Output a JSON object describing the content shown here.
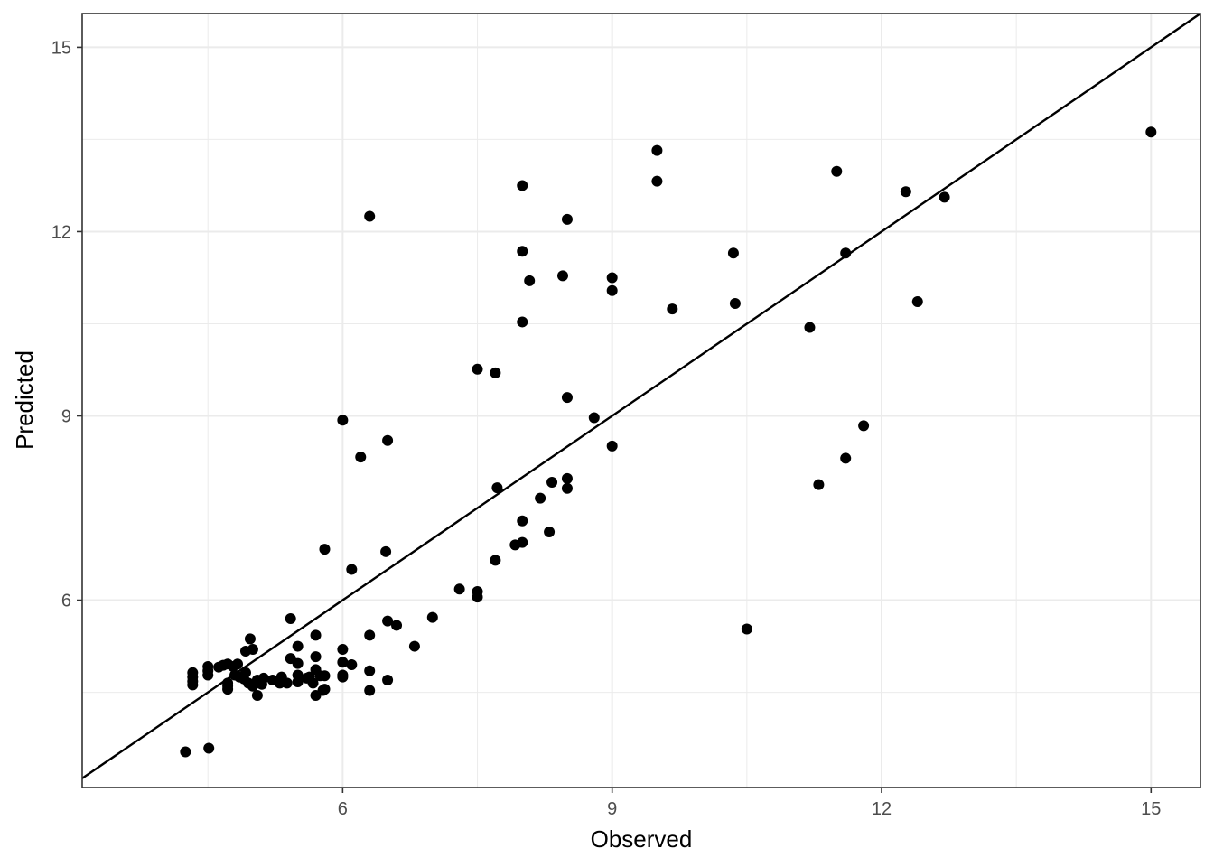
{
  "chart_data": {
    "type": "scatter",
    "xlabel": "Observed",
    "ylabel": "Predicted",
    "xlim": [
      3.1,
      15.55
    ],
    "ylim": [
      2.95,
      15.55
    ],
    "x_ticks": [
      6,
      9,
      12,
      15
    ],
    "y_ticks": [
      6,
      9,
      12,
      15
    ],
    "x_tick_labels": [
      "6",
      "9",
      "12",
      "15"
    ],
    "y_tick_labels": [
      "6",
      "9",
      "12",
      "15"
    ],
    "grid": true,
    "legend": "none",
    "theme": "bw",
    "reference_line": {
      "type": "identity",
      "slope": 1,
      "intercept": 0
    },
    "colors": {
      "points": "#000000",
      "line": "#000000",
      "grid": "#ebebeb",
      "border": "#333333",
      "tick_text": "#4d4d4d"
    },
    "points": [
      [
        4.25,
        3.53
      ],
      [
        4.51,
        3.59
      ],
      [
        4.33,
        4.82
      ],
      [
        4.33,
        4.75
      ],
      [
        4.33,
        4.68
      ],
      [
        4.33,
        4.62
      ],
      [
        4.5,
        4.92
      ],
      [
        4.5,
        4.85
      ],
      [
        4.5,
        4.78
      ],
      [
        4.62,
        4.91
      ],
      [
        4.67,
        4.94
      ],
      [
        4.72,
        4.96
      ],
      [
        4.78,
        4.92
      ],
      [
        4.83,
        4.96
      ],
      [
        4.72,
        4.65
      ],
      [
        4.72,
        4.6
      ],
      [
        4.72,
        4.55
      ],
      [
        4.8,
        4.78
      ],
      [
        4.85,
        4.75
      ],
      [
        4.9,
        4.72
      ],
      [
        4.92,
        4.82
      ],
      [
        4.92,
        5.17
      ],
      [
        4.97,
        5.37
      ],
      [
        5.0,
        5.2
      ],
      [
        4.95,
        4.65
      ],
      [
        5.0,
        4.6
      ],
      [
        5.05,
        4.45
      ],
      [
        5.05,
        4.7
      ],
      [
        5.1,
        4.63
      ],
      [
        5.12,
        4.73
      ],
      [
        5.22,
        4.7
      ],
      [
        5.3,
        4.65
      ],
      [
        5.32,
        4.75
      ],
      [
        5.38,
        4.65
      ],
      [
        5.42,
        5.05
      ],
      [
        5.42,
        5.7
      ],
      [
        5.5,
        5.25
      ],
      [
        5.5,
        4.97
      ],
      [
        5.5,
        4.78
      ],
      [
        5.5,
        4.67
      ],
      [
        5.6,
        4.73
      ],
      [
        5.63,
        4.75
      ],
      [
        5.67,
        4.65
      ],
      [
        5.7,
        4.87
      ],
      [
        5.7,
        5.08
      ],
      [
        5.7,
        5.43
      ],
      [
        5.7,
        4.45
      ],
      [
        5.75,
        4.77
      ],
      [
        5.78,
        4.53
      ],
      [
        5.8,
        4.55
      ],
      [
        5.8,
        4.77
      ],
      [
        5.8,
        6.83
      ],
      [
        6.0,
        4.78
      ],
      [
        6.0,
        4.75
      ],
      [
        6.0,
        5.2
      ],
      [
        6.0,
        4.99
      ],
      [
        6.1,
        4.95
      ],
      [
        6.1,
        6.5
      ],
      [
        6.2,
        8.33
      ],
      [
        6.0,
        8.93
      ],
      [
        6.3,
        12.25
      ],
      [
        6.3,
        4.85
      ],
      [
        6.3,
        4.53
      ],
      [
        6.3,
        5.43
      ],
      [
        6.48,
        6.79
      ],
      [
        6.5,
        5.66
      ],
      [
        6.5,
        8.6
      ],
      [
        6.5,
        4.7
      ],
      [
        6.6,
        5.59
      ],
      [
        6.8,
        5.25
      ],
      [
        7.0,
        5.72
      ],
      [
        7.3,
        6.18
      ],
      [
        7.5,
        6.14
      ],
      [
        7.5,
        6.05
      ],
      [
        7.5,
        9.76
      ],
      [
        7.7,
        9.7
      ],
      [
        7.7,
        6.65
      ],
      [
        7.72,
        7.83
      ],
      [
        7.92,
        6.9
      ],
      [
        8.0,
        6.94
      ],
      [
        8.0,
        7.29
      ],
      [
        8.0,
        10.53
      ],
      [
        8.0,
        11.68
      ],
      [
        8.0,
        12.75
      ],
      [
        8.08,
        11.2
      ],
      [
        8.2,
        7.66
      ],
      [
        8.3,
        7.11
      ],
      [
        8.33,
        7.92
      ],
      [
        8.45,
        11.28
      ],
      [
        8.5,
        12.2
      ],
      [
        8.5,
        9.3
      ],
      [
        8.5,
        7.82
      ],
      [
        8.5,
        7.98
      ],
      [
        8.8,
        8.97
      ],
      [
        9.0,
        8.51
      ],
      [
        9.0,
        11.25
      ],
      [
        9.0,
        11.04
      ],
      [
        9.5,
        12.82
      ],
      [
        9.5,
        13.32
      ],
      [
        9.67,
        10.74
      ],
      [
        10.35,
        11.65
      ],
      [
        10.37,
        10.83
      ],
      [
        10.5,
        5.53
      ],
      [
        11.2,
        10.44
      ],
      [
        11.3,
        7.88
      ],
      [
        11.5,
        12.98
      ],
      [
        11.6,
        8.31
      ],
      [
        11.6,
        11.65
      ],
      [
        11.8,
        8.84
      ],
      [
        12.27,
        12.65
      ],
      [
        12.4,
        10.86
      ],
      [
        12.7,
        12.56
      ],
      [
        15.0,
        13.62
      ]
    ]
  }
}
